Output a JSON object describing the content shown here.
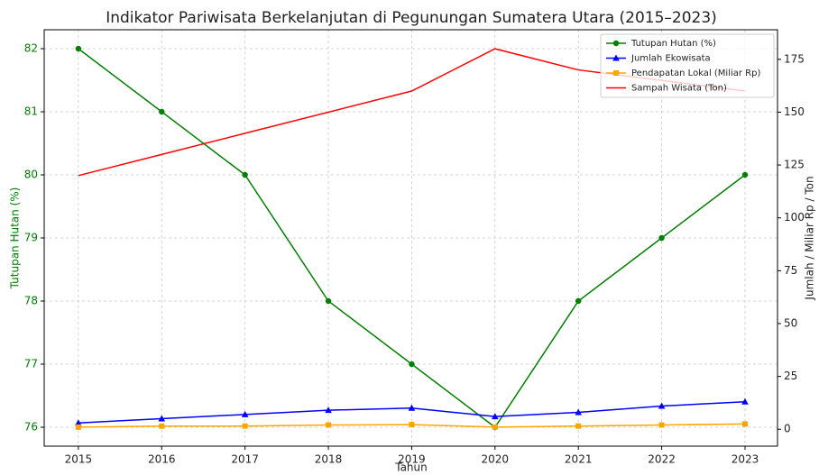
{
  "chart_data": {
    "type": "line",
    "title": "Indikator Pariwisata Berkelanjutan di Pegunungan Sumatera Utara (2015–2023)",
    "xlabel": "Tahun",
    "ylabel": "Tutupan Hutan (%)",
    "y2label": "Jumlah / Miliar Rp / Ton",
    "x": [
      2015,
      2016,
      2017,
      2018,
      2019,
      2020,
      2021,
      2022,
      2023
    ],
    "xlim": [
      2014.59,
      2023.39
    ],
    "xticks": [
      2015,
      2016,
      2017,
      2018,
      2019,
      2020,
      2021,
      2022,
      2023
    ],
    "ylim": [
      75.7,
      82.3
    ],
    "yticks": [
      76,
      77,
      78,
      79,
      80,
      81,
      82
    ],
    "y2lim": [
      -8,
      189
    ],
    "y2ticks": [
      0,
      25,
      50,
      75,
      100,
      125,
      150,
      175
    ],
    "grid": true,
    "legend": "upper right",
    "ylabel_color": "#008000",
    "series": [
      {
        "name": "Tutupan Hutan (%)",
        "color": "#008000",
        "marker": "circle",
        "values": [
          82,
          81,
          80,
          78,
          77,
          76,
          78,
          79,
          80
        ]
      },
      {
        "name": "Jumlah Ekowisata",
        "color": "#0000ff",
        "marker": "triangle",
        "axis": "y2",
        "values": [
          3,
          5,
          7,
          9,
          10,
          6,
          8,
          11,
          13
        ]
      },
      {
        "name": "Pendapatan Lokal (Miliar Rp)",
        "color": "#ffa500",
        "marker": "square",
        "axis": "y2",
        "values": [
          1.0,
          1.5,
          1.5,
          2.0,
          2.2,
          1.0,
          1.5,
          2.0,
          2.5
        ]
      },
      {
        "name": "Sampah Wisata (Ton)",
        "color": "#ff0000",
        "marker": "none",
        "axis": "y2",
        "values": [
          120,
          130,
          140,
          150,
          160,
          180,
          170,
          165,
          160
        ]
      }
    ]
  }
}
